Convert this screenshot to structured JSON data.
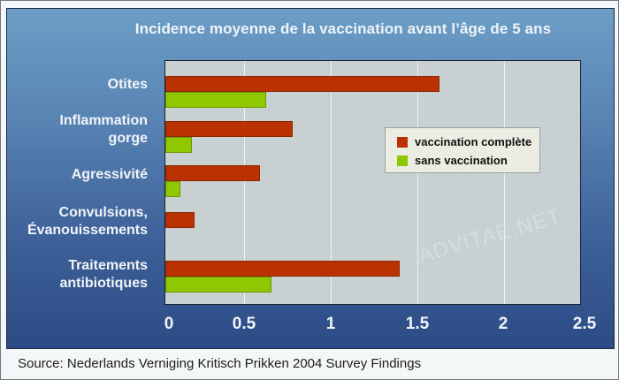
{
  "chart_data": {
    "type": "bar",
    "orientation": "horizontal",
    "title": "Incidence moyenne de la vaccination avant l’âge de 5 ans",
    "categories": [
      "Otites",
      "Inflammation gorge",
      "Agressivité",
      "Convulsions, Évanouissements",
      "Traitements antibiotiques"
    ],
    "category_lines": [
      [
        "Otites"
      ],
      [
        "Inflammation",
        "gorge"
      ],
      [
        "Agressivité"
      ],
      [
        "Convulsions,",
        "Évanouissements"
      ],
      [
        "Traitements",
        "antibiotiques"
      ]
    ],
    "series": [
      {
        "name": "vaccination complète",
        "color": "#b93200",
        "values": [
          1.63,
          0.78,
          0.59,
          0.2,
          1.4
        ]
      },
      {
        "name": "sans vaccination",
        "color": "#8fc800",
        "values": [
          0.63,
          0.18,
          0.1,
          0.0,
          0.66
        ]
      }
    ],
    "xlabel": "",
    "ylabel": "",
    "xlim": [
      0,
      2.5
    ],
    "xticks": [
      "0",
      "0.5",
      "1",
      "1.5",
      "2",
      "2.5"
    ],
    "grid": true,
    "legend_position": "inside right-top"
  },
  "title": "Incidence moyenne de la vaccination avant l’âge de 5 ans",
  "legend": {
    "items": [
      {
        "label": "vaccination complète",
        "color": "#b93200"
      },
      {
        "label": "sans vaccination",
        "color": "#8fc800"
      }
    ]
  },
  "watermark": "ADVITAE.NET",
  "source": "Source: Nederlands Verniging Kritisch Prikken 2004 Survey Findings"
}
